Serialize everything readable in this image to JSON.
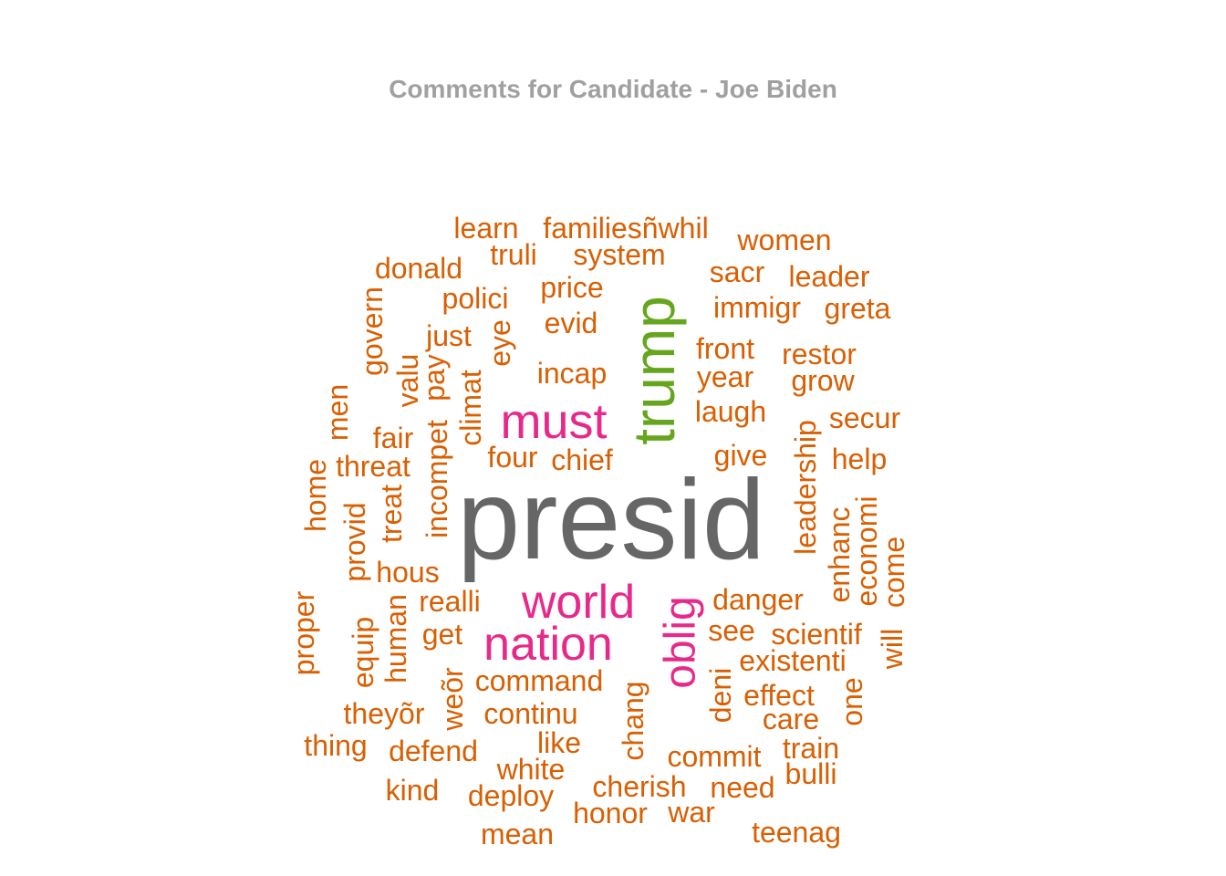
{
  "chart_data": {
    "type": "wordcloud",
    "title": "Comments for Candidate - Joe Biden",
    "palette": {
      "top": "#666666",
      "second": "#66a61e",
      "third": "#e7298a",
      "rest": "#d95f02"
    },
    "words": [
      {
        "text": "presid",
        "tier": "top"
      },
      {
        "text": "trump",
        "tier": "second"
      },
      {
        "text": "must",
        "tier": "third"
      },
      {
        "text": "world",
        "tier": "third"
      },
      {
        "text": "nation",
        "tier": "third"
      },
      {
        "text": "oblig",
        "tier": "third"
      },
      {
        "text": "learn",
        "tier": "rest"
      },
      {
        "text": "familiesñwhil",
        "tier": "rest"
      },
      {
        "text": "women",
        "tier": "rest"
      },
      {
        "text": "truli",
        "tier": "rest"
      },
      {
        "text": "system",
        "tier": "rest"
      },
      {
        "text": "donald",
        "tier": "rest"
      },
      {
        "text": "sacr",
        "tier": "rest"
      },
      {
        "text": "leader",
        "tier": "rest"
      },
      {
        "text": "polici",
        "tier": "rest"
      },
      {
        "text": "price",
        "tier": "rest"
      },
      {
        "text": "immigr",
        "tier": "rest"
      },
      {
        "text": "greta",
        "tier": "rest"
      },
      {
        "text": "govern",
        "tier": "rest"
      },
      {
        "text": "evid",
        "tier": "rest"
      },
      {
        "text": "just",
        "tier": "rest"
      },
      {
        "text": "eye",
        "tier": "rest"
      },
      {
        "text": "front",
        "tier": "rest"
      },
      {
        "text": "restor",
        "tier": "rest"
      },
      {
        "text": "valu",
        "tier": "rest"
      },
      {
        "text": "pay",
        "tier": "rest"
      },
      {
        "text": "incap",
        "tier": "rest"
      },
      {
        "text": "year",
        "tier": "rest"
      },
      {
        "text": "grow",
        "tier": "rest"
      },
      {
        "text": "men",
        "tier": "rest"
      },
      {
        "text": "climat",
        "tier": "rest"
      },
      {
        "text": "laugh",
        "tier": "rest"
      },
      {
        "text": "secur",
        "tier": "rest"
      },
      {
        "text": "fair",
        "tier": "rest"
      },
      {
        "text": "incompet",
        "tier": "rest"
      },
      {
        "text": "leadership",
        "tier": "rest"
      },
      {
        "text": "four",
        "tier": "rest"
      },
      {
        "text": "chief",
        "tier": "rest"
      },
      {
        "text": "give",
        "tier": "rest"
      },
      {
        "text": "help",
        "tier": "rest"
      },
      {
        "text": "home",
        "tier": "rest"
      },
      {
        "text": "threat",
        "tier": "rest"
      },
      {
        "text": "treat",
        "tier": "rest"
      },
      {
        "text": "enhanc",
        "tier": "rest"
      },
      {
        "text": "economi",
        "tier": "rest"
      },
      {
        "text": "provid",
        "tier": "rest"
      },
      {
        "text": "come",
        "tier": "rest"
      },
      {
        "text": "hous",
        "tier": "rest"
      },
      {
        "text": "danger",
        "tier": "rest"
      },
      {
        "text": "proper",
        "tier": "rest"
      },
      {
        "text": "realli",
        "tier": "rest"
      },
      {
        "text": "human",
        "tier": "rest"
      },
      {
        "text": "see",
        "tier": "rest"
      },
      {
        "text": "scientif",
        "tier": "rest"
      },
      {
        "text": "equip",
        "tier": "rest"
      },
      {
        "text": "get",
        "tier": "rest"
      },
      {
        "text": "will",
        "tier": "rest"
      },
      {
        "text": "existenti",
        "tier": "rest"
      },
      {
        "text": "command",
        "tier": "rest"
      },
      {
        "text": "weõr",
        "tier": "rest"
      },
      {
        "text": "deni",
        "tier": "rest"
      },
      {
        "text": "effect",
        "tier": "rest"
      },
      {
        "text": "one",
        "tier": "rest"
      },
      {
        "text": "theyõr",
        "tier": "rest"
      },
      {
        "text": "continu",
        "tier": "rest"
      },
      {
        "text": "chang",
        "tier": "rest"
      },
      {
        "text": "care",
        "tier": "rest"
      },
      {
        "text": "thing",
        "tier": "rest"
      },
      {
        "text": "like",
        "tier": "rest"
      },
      {
        "text": "defend",
        "tier": "rest"
      },
      {
        "text": "commit",
        "tier": "rest"
      },
      {
        "text": "train",
        "tier": "rest"
      },
      {
        "text": "white",
        "tier": "rest"
      },
      {
        "text": "bulli",
        "tier": "rest"
      },
      {
        "text": "kind",
        "tier": "rest"
      },
      {
        "text": "cherish",
        "tier": "rest"
      },
      {
        "text": "need",
        "tier": "rest"
      },
      {
        "text": "deploy",
        "tier": "rest"
      },
      {
        "text": "honor",
        "tier": "rest"
      },
      {
        "text": "war",
        "tier": "rest"
      },
      {
        "text": "mean",
        "tier": "rest"
      },
      {
        "text": "teenag",
        "tier": "rest"
      }
    ]
  }
}
